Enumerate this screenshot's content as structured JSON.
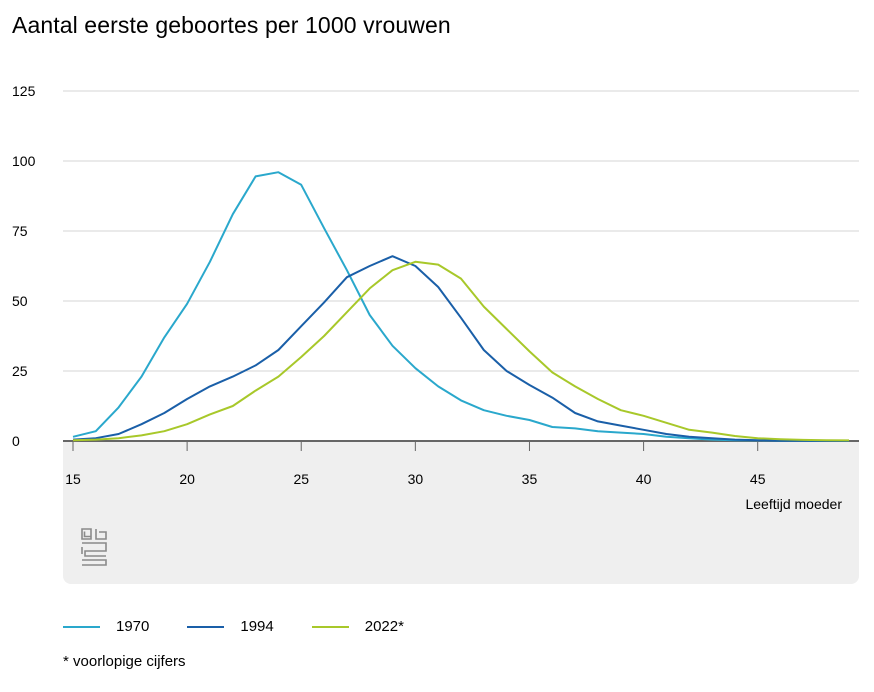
{
  "title": "Aantal eerste geboortes per 1000 vrouwen",
  "footnote": "* voorlopige cijfers",
  "colors": {
    "s1970": "#2aa8cc",
    "s1994": "#1a5fa8",
    "s2022": "#a8c82a",
    "grid": "#d6d6d6",
    "zero_axis": "#666666",
    "panel": "#efefef",
    "logo": "#8a8a8a"
  },
  "logo_icon": "cbs-logo-icon",
  "chart_data": {
    "type": "line",
    "title": "Aantal eerste geboortes per 1000 vrouwen",
    "xlabel": "Leeftijd moeder",
    "ylabel": "",
    "xlim": [
      15,
      49
    ],
    "ylim": [
      0,
      125
    ],
    "yticks": [
      "0",
      "25",
      "50",
      "75",
      "100",
      "125"
    ],
    "xticks": [
      "15",
      "20",
      "25",
      "30",
      "35",
      "40",
      "45"
    ],
    "grid": true,
    "legend_position": "bottom-left",
    "x": [
      15,
      16,
      17,
      18,
      19,
      20,
      21,
      22,
      23,
      24,
      25,
      26,
      27,
      28,
      29,
      30,
      31,
      32,
      33,
      34,
      35,
      36,
      37,
      38,
      39,
      40,
      41,
      42,
      43,
      44,
      45,
      46,
      47,
      48,
      49
    ],
    "series": [
      {
        "name": "1970",
        "values": [
          1.5,
          3.5,
          12,
          23,
          37,
          49,
          64,
          81,
          94.5,
          96,
          91.5,
          76,
          61,
          45,
          34,
          26,
          19.5,
          14.5,
          11,
          9,
          7.5,
          5,
          4.5,
          3.5,
          3,
          2.5,
          1.5,
          1,
          0.5,
          0.3,
          0.2,
          0.1,
          0.1,
          0,
          0
        ]
      },
      {
        "name": "1994",
        "values": [
          0.5,
          1,
          2.5,
          6,
          10,
          15,
          19.5,
          23,
          27,
          32.5,
          41,
          49.5,
          58.5,
          62.5,
          66,
          62.5,
          55,
          44,
          32.5,
          25,
          20,
          15.5,
          10,
          7,
          5.5,
          4,
          2.5,
          1.5,
          1,
          0.5,
          0.3,
          0.1,
          0.1,
          0,
          0
        ]
      },
      {
        "name": "2022*",
        "values": [
          0.3,
          0.5,
          1,
          2,
          3.5,
          6,
          9.5,
          12.5,
          18,
          23,
          30,
          37.5,
          46,
          54.5,
          61,
          64,
          63,
          58,
          48,
          40,
          32,
          24.5,
          19.5,
          15,
          11,
          9,
          6.5,
          4,
          3,
          1.8,
          1,
          0.6,
          0.4,
          0.3,
          0.2
        ]
      }
    ]
  }
}
